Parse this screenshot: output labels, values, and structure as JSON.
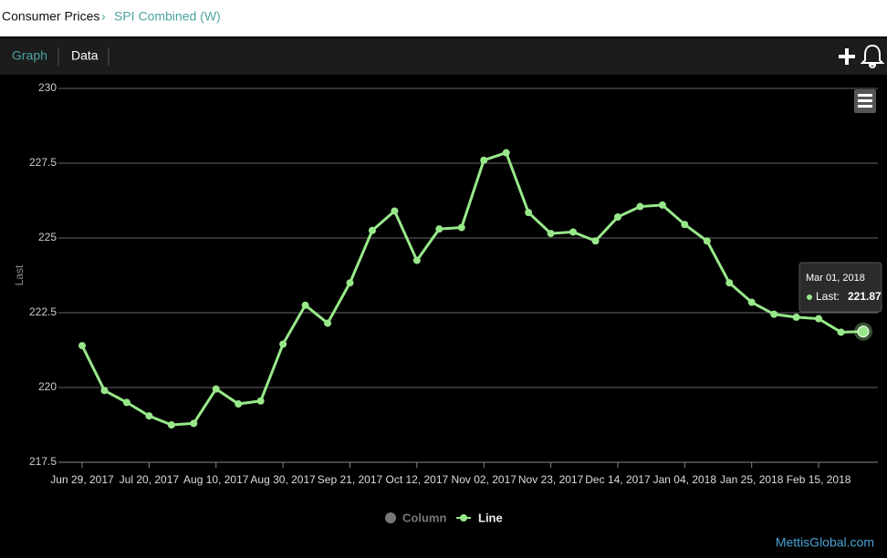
{
  "header": {
    "breadcrumb": "Consumer Prices",
    "page": "SPI Combined (W)"
  },
  "tabs": [
    "Graph",
    "Data"
  ],
  "chart_data": {
    "type": "line",
    "y_label": "Last",
    "categories": [
      "Jun 29, 2017",
      null,
      null,
      "Jul 20, 2017",
      null,
      null,
      "Aug 10, 2017",
      null,
      null,
      "Aug 30, 2017",
      null,
      null,
      "Sep 21, 2017",
      null,
      null,
      "Oct 12, 2017",
      null,
      null,
      "Nov 02, 2017",
      null,
      null,
      "Nov 23, 2017",
      null,
      null,
      "Dec 14, 2017",
      null,
      null,
      "Jan 04, 2018",
      null,
      null,
      "Jan 25, 2018",
      null,
      null,
      "Feb 15, 2018",
      null,
      null
    ],
    "series": [
      {
        "color": "#98e88a",
        "values": [
          221.4,
          219.9,
          219.5,
          219.05,
          218.75,
          218.8,
          219.95,
          219.45,
          219.55,
          221.45,
          222.75,
          222.15,
          223.5,
          225.25,
          225.9,
          224.25,
          225.3,
          225.35,
          227.6,
          227.85,
          225.85,
          225.15,
          225.2,
          224.9,
          225.7,
          226.05,
          226.1,
          225.45,
          224.9,
          223.5,
          222.85,
          222.45,
          222.35,
          222.3,
          221.85,
          221.87
        ]
      }
    ],
    "ylim": [
      217.5,
      230
    ],
    "yticks": [
      217.5,
      220,
      222.5,
      225,
      227.5,
      230
    ],
    "grid": true,
    "legend": [
      {
        "name": "Column",
        "color": "#777777"
      },
      {
        "name": "Line",
        "color": "#98e88a"
      }
    ],
    "tooltip": {
      "date": "Mar 01, 2018",
      "label": "Last:",
      "value": 221.87
    }
  },
  "footer": "MettisGlobal.com"
}
